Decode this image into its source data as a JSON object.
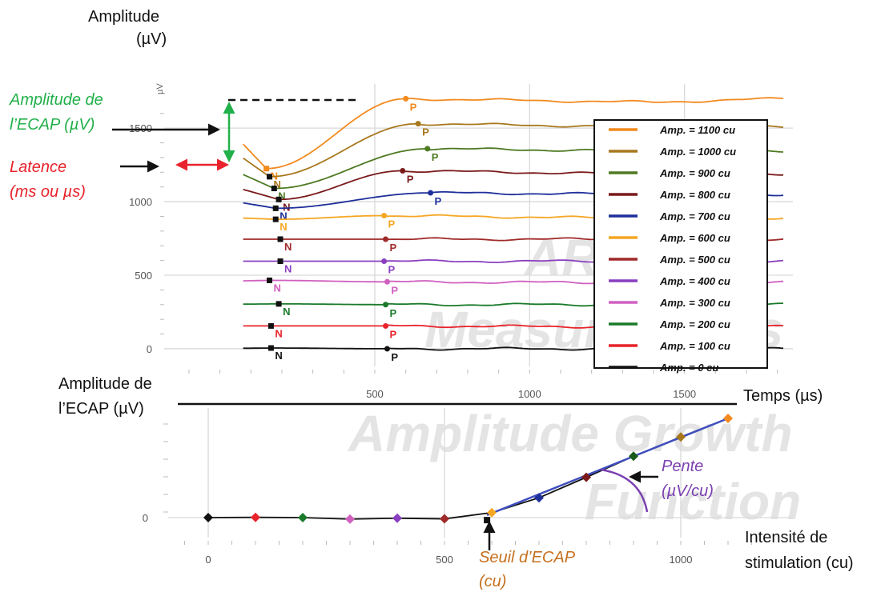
{
  "labels": {
    "top_ylabel": "Amplitude",
    "top_yunit": "(µV)",
    "top_axis_unit": "µV",
    "ecap_amp_line1": "Amplitude de",
    "ecap_amp_line2": "l’ECAP (µV)",
    "latency_line1": "Latence",
    "latency_line2": "(ms ou µs)",
    "bottom_ylabel_line1": "Amplitude de",
    "bottom_ylabel_line2": "l’ECAP (µV)",
    "time_label": "Temps (µs)",
    "intensity_line1": "Intensité de",
    "intensity_line2": "stimulation (cu)",
    "slope_line1": "Pente",
    "slope_line2": "(µV/cu)",
    "threshold_line1": "Seuil d’ECAP",
    "threshold_line2": "(cu)",
    "watermark_1": "ART Se",
    "watermark_2": "Measurements",
    "watermark_3": "Amplitude Growth",
    "watermark_4": "Function"
  },
  "colors": {
    "green": "#22b04a",
    "red": "#e8232b",
    "orange": "#c5701f",
    "purple": "#7a3fb0",
    "fit_line": "#3f4fbf"
  },
  "chart_data": [
    {
      "type": "line",
      "xlim": [
        -180,
        1850
      ],
      "ylim": [
        -120,
        1800
      ],
      "x_ticks": [
        500,
        1000,
        1500
      ],
      "y_ticks": [
        0,
        500,
        1000,
        1500
      ],
      "grid": true,
      "legend_position": "right",
      "series": [
        {
          "name": "Amp. = 1100 cu",
          "color": "#f28a1e",
          "baseline": 1700,
          "n": {
            "x": 150,
            "y": 1225,
            "label": "N"
          },
          "p": {
            "x": 600,
            "y": 1700,
            "label": "P"
          }
        },
        {
          "name": "Amp. = 1000 cu",
          "color": "#a8781e",
          "baseline": 1510,
          "n": {
            "x": 160,
            "y": 1170,
            "label": "N"
          },
          "p": {
            "x": 640,
            "y": 1530,
            "label": "P"
          }
        },
        {
          "name": "Amp. = 900 cu",
          "color": "#4e7a22",
          "baseline": 1345,
          "n": {
            "x": 175,
            "y": 1090,
            "label": "N"
          },
          "p": {
            "x": 670,
            "y": 1360,
            "label": "P"
          }
        },
        {
          "name": "Amp. = 800 cu",
          "color": "#7a1a1a",
          "baseline": 1190,
          "n": {
            "x": 190,
            "y": 1015,
            "label": "N"
          },
          "p": {
            "x": 590,
            "y": 1210,
            "label": "P"
          }
        },
        {
          "name": "Amp. = 700 cu",
          "color": "#1f2f9a",
          "baseline": 1050,
          "n": {
            "x": 180,
            "y": 955,
            "label": "N"
          },
          "p": {
            "x": 680,
            "y": 1060,
            "label": "P"
          }
        },
        {
          "name": "Amp. = 600 cu",
          "color": "#f5a623",
          "baseline": 890,
          "n": {
            "x": 180,
            "y": 880,
            "label": "N"
          },
          "p": {
            "x": 530,
            "y": 905,
            "label": "P"
          }
        },
        {
          "name": "Amp. = 500 cu",
          "color": "#a02a2a",
          "baseline": 745,
          "n": {
            "x": 195,
            "y": 745,
            "label": "N"
          },
          "p": {
            "x": 535,
            "y": 745,
            "label": "P"
          }
        },
        {
          "name": "Amp. = 400 cu",
          "color": "#8a3fc0",
          "baseline": 595,
          "n": {
            "x": 195,
            "y": 595,
            "label": "N"
          },
          "p": {
            "x": 530,
            "y": 595,
            "label": "P"
          }
        },
        {
          "name": "Amp. = 300 cu",
          "color": "#d060c0",
          "baseline": 450,
          "n": {
            "x": 160,
            "y": 465,
            "label": "N"
          },
          "p": {
            "x": 540,
            "y": 455,
            "label": "P"
          }
        },
        {
          "name": "Amp. = 200 cu",
          "color": "#1a7a2a",
          "baseline": 300,
          "n": {
            "x": 190,
            "y": 305,
            "label": "N"
          },
          "p": {
            "x": 535,
            "y": 300,
            "label": "P"
          }
        },
        {
          "name": "Amp. = 100 cu",
          "color": "#e8232b",
          "baseline": 150,
          "n": {
            "x": 165,
            "y": 155,
            "label": "N"
          },
          "p": {
            "x": 535,
            "y": 155,
            "label": "P"
          }
        },
        {
          "name": "Amp. = 0 cu",
          "color": "#111111",
          "baseline": 0,
          "n": {
            "x": 165,
            "y": 5,
            "label": "N"
          },
          "p": {
            "x": 540,
            "y": 0,
            "label": "P"
          }
        }
      ]
    },
    {
      "type": "scatter",
      "xlim": [
        -60,
        1150
      ],
      "ylim": [
        -80,
        820
      ],
      "x_ticks": [
        0,
        500,
        1000
      ],
      "y_ticks": [
        0
      ],
      "grid": true,
      "points": [
        {
          "x": 0,
          "y": 0,
          "color": "#111111"
        },
        {
          "x": 100,
          "y": 2,
          "color": "#e8232b"
        },
        {
          "x": 200,
          "y": 0,
          "color": "#1a7a2a"
        },
        {
          "x": 300,
          "y": -12,
          "color": "#d060c0"
        },
        {
          "x": 400,
          "y": -5,
          "color": "#8a3fc0"
        },
        {
          "x": 500,
          "y": -10,
          "color": "#a02a2a"
        },
        {
          "x": 600,
          "y": 40,
          "color": "#f5a623"
        },
        {
          "x": 700,
          "y": 160,
          "color": "#1f2f9a"
        },
        {
          "x": 800,
          "y": 325,
          "color": "#7a1a1a"
        },
        {
          "x": 900,
          "y": 495,
          "color": "#1a5a1a"
        },
        {
          "x": 1000,
          "y": 650,
          "color": "#a8781e"
        },
        {
          "x": 1100,
          "y": 800,
          "color": "#f28a1e"
        }
      ],
      "fit_line": {
        "x1": 590,
        "y1": 20,
        "x2": 1100,
        "y2": 800
      },
      "threshold": {
        "x": 590,
        "y": -20
      }
    }
  ]
}
